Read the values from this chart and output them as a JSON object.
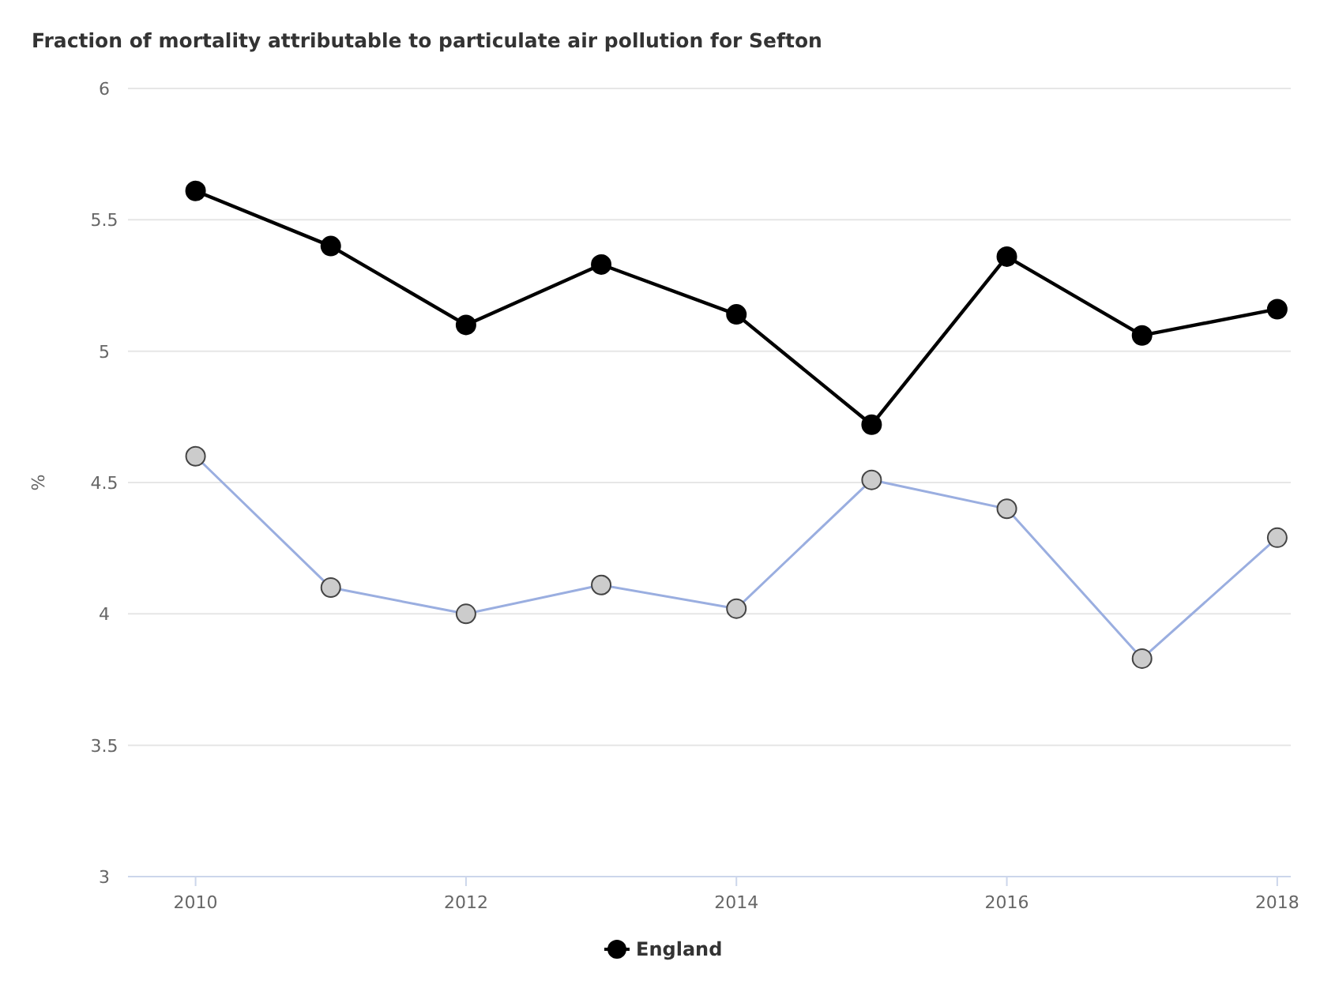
{
  "chart_data": {
    "type": "line",
    "title": "Fraction of mortality attributable to particulate air pollution for Sefton",
    "ylabel": "%",
    "x": [
      2010,
      2011,
      2012,
      2013,
      2014,
      2015,
      2016,
      2017,
      2018
    ],
    "xlim": [
      2009.5,
      2018.1
    ],
    "xticks": [
      2010,
      2012,
      2014,
      2016,
      2018
    ],
    "ylim": [
      3,
      6
    ],
    "yticks": [
      3,
      3.5,
      4,
      4.5,
      5,
      5.5,
      6
    ],
    "series": [
      {
        "name": "England",
        "color": "#000000",
        "values": [
          5.61,
          5.4,
          5.1,
          5.33,
          5.14,
          4.72,
          5.36,
          5.06,
          5.16
        ]
      },
      {
        "color": "#9aaee0",
        "values": [
          4.6,
          4.1,
          4.0,
          4.11,
          4.02,
          4.51,
          4.4,
          3.83,
          4.29
        ]
      }
    ],
    "grid": "y",
    "legend": "bottom",
    "marker": "circle",
    "line_style": "solid"
  }
}
